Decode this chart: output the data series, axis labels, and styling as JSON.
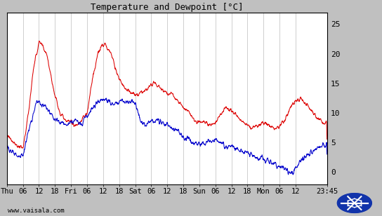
{
  "title": "Temperature and Dewpoint [°C]",
  "bg_color": "#c0c0c0",
  "plot_bg_color": "#ffffff",
  "grid_color": "#c8c8c8",
  "temp_color": "#dd0000",
  "dewp_color": "#0000cc",
  "ylim": [
    -2,
    27
  ],
  "yticks": [
    0,
    5,
    10,
    15,
    20,
    25
  ],
  "xlabel_bottom": "www.vaisala.com",
  "x_tick_labels": [
    "Thu",
    "06",
    "12",
    "18",
    "Fri",
    "06",
    "12",
    "18",
    "Sat",
    "06",
    "12",
    "18",
    "Sun",
    "06",
    "12",
    "18",
    "Mon",
    "06",
    "12",
    "23:45"
  ],
  "x_tick_positions": [
    0,
    6,
    12,
    18,
    24,
    30,
    36,
    42,
    48,
    54,
    60,
    66,
    72,
    78,
    84,
    90,
    96,
    102,
    108,
    119.75
  ],
  "total_hours": 119.75,
  "temp_keypoints": [
    [
      0,
      6.5
    ],
    [
      2,
      5.5
    ],
    [
      4,
      4.5
    ],
    [
      6,
      4.0
    ],
    [
      8,
      10
    ],
    [
      10,
      18
    ],
    [
      12,
      22
    ],
    [
      13,
      21.5
    ],
    [
      15,
      20
    ],
    [
      17,
      15
    ],
    [
      18,
      13
    ],
    [
      20,
      10
    ],
    [
      22,
      9
    ],
    [
      24,
      8.5
    ],
    [
      26,
      8
    ],
    [
      28,
      9
    ],
    [
      29,
      9.5
    ],
    [
      30,
      10
    ],
    [
      32,
      16
    ],
    [
      34,
      20
    ],
    [
      36,
      22
    ],
    [
      37,
      21.5
    ],
    [
      39,
      20
    ],
    [
      41,
      17
    ],
    [
      43,
      15
    ],
    [
      45,
      14
    ],
    [
      48,
      13
    ],
    [
      50,
      13.5
    ],
    [
      52,
      14
    ],
    [
      54,
      15
    ],
    [
      56,
      15
    ],
    [
      57,
      14.5
    ],
    [
      58,
      14
    ],
    [
      60,
      13.5
    ],
    [
      62,
      13
    ],
    [
      64,
      12
    ],
    [
      66,
      11
    ],
    [
      68,
      10.5
    ],
    [
      70,
      9
    ],
    [
      72,
      8.5
    ],
    [
      74,
      8.5
    ],
    [
      76,
      8
    ],
    [
      78,
      8.5
    ],
    [
      80,
      10
    ],
    [
      82,
      11
    ],
    [
      84,
      10.5
    ],
    [
      86,
      9.5
    ],
    [
      88,
      8.5
    ],
    [
      90,
      8
    ],
    [
      92,
      7.5
    ],
    [
      94,
      8
    ],
    [
      96,
      8.5
    ],
    [
      98,
      8
    ],
    [
      100,
      7.5
    ],
    [
      102,
      8
    ],
    [
      104,
      9
    ],
    [
      106,
      11
    ],
    [
      108,
      12
    ],
    [
      110,
      12.5
    ],
    [
      112,
      11.5
    ],
    [
      114,
      10.5
    ],
    [
      116,
      9.5
    ],
    [
      118,
      8.5
    ],
    [
      119.75,
      8.5
    ]
  ],
  "dewp_keypoints": [
    [
      0,
      4.5
    ],
    [
      2,
      3.5
    ],
    [
      4,
      3.0
    ],
    [
      6,
      3.0
    ],
    [
      8,
      7
    ],
    [
      10,
      10
    ],
    [
      11,
      12
    ],
    [
      12,
      12
    ],
    [
      13,
      11.5
    ],
    [
      15,
      11
    ],
    [
      17,
      9.5
    ],
    [
      18,
      9
    ],
    [
      20,
      8.5
    ],
    [
      22,
      8
    ],
    [
      24,
      8.5
    ],
    [
      26,
      9
    ],
    [
      27,
      8.5
    ],
    [
      28,
      8
    ],
    [
      29,
      9
    ],
    [
      30,
      9.5
    ],
    [
      32,
      11
    ],
    [
      34,
      12
    ],
    [
      36,
      12.5
    ],
    [
      38,
      12
    ],
    [
      40,
      11.5
    ],
    [
      42,
      12
    ],
    [
      44,
      12
    ],
    [
      46,
      12
    ],
    [
      48,
      12
    ],
    [
      50,
      8.5
    ],
    [
      52,
      8.0
    ],
    [
      54,
      8.5
    ],
    [
      56,
      9
    ],
    [
      58,
      8.5
    ],
    [
      60,
      8.0
    ],
    [
      62,
      7.5
    ],
    [
      63,
      7.5
    ],
    [
      64,
      7
    ],
    [
      65,
      6.5
    ],
    [
      66,
      6.0
    ],
    [
      68,
      5.5
    ],
    [
      70,
      5.0
    ],
    [
      72,
      5.0
    ],
    [
      74,
      5.0
    ],
    [
      76,
      5.5
    ],
    [
      78,
      5.5
    ],
    [
      80,
      5.0
    ],
    [
      82,
      4.5
    ],
    [
      84,
      4.5
    ],
    [
      86,
      4.0
    ],
    [
      88,
      3.5
    ],
    [
      90,
      3.5
    ],
    [
      92,
      3.0
    ],
    [
      94,
      2.5
    ],
    [
      96,
      2.5
    ],
    [
      98,
      2.0
    ],
    [
      100,
      1.5
    ],
    [
      102,
      1.0
    ],
    [
      104,
      0.5
    ],
    [
      106,
      0.0
    ],
    [
      107,
      0.0
    ],
    [
      108,
      1.0
    ],
    [
      110,
      2.0
    ],
    [
      112,
      3.0
    ],
    [
      114,
      3.5
    ],
    [
      116,
      4.0
    ],
    [
      118,
      4.5
    ],
    [
      119.75,
      5.0
    ]
  ]
}
